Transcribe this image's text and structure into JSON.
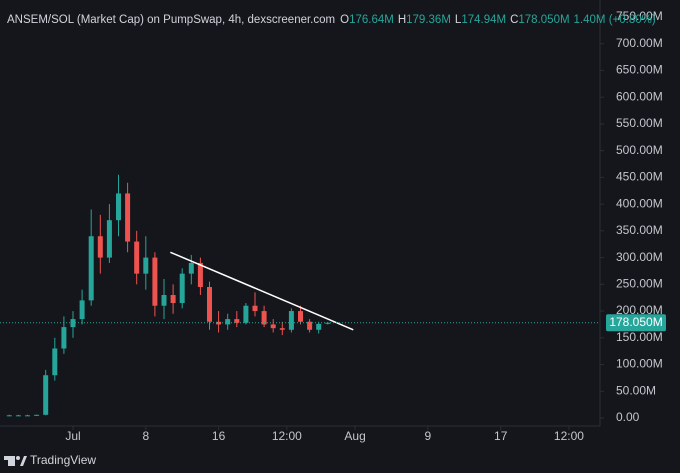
{
  "chart_data": {
    "type": "candlestick",
    "title": "ANSEM/SOL (Market Cap) on PumpSwap, 4h, dexscreener.com",
    "legend_ohlc": {
      "labels": [
        "O",
        "H",
        "L",
        "C"
      ],
      "values": [
        176.64,
        179.36,
        174.94,
        178.05
      ],
      "value_labels": [
        "176.64M",
        "179.36M",
        "174.94M",
        "178.050M"
      ]
    },
    "change": {
      "value": 1.4,
      "percent": 0.8,
      "label": "1.40M (+0.80%)"
    },
    "last_price": {
      "value": 178.05,
      "label": "178.050M"
    },
    "up_color": "#26a69a",
    "down_color": "#ef5350",
    "x": [
      -7,
      -6,
      -5,
      -4,
      -3,
      -2,
      -1,
      0,
      1,
      2,
      3,
      4,
      5,
      6,
      7,
      8,
      9,
      10,
      11,
      12,
      13,
      14,
      15,
      16,
      17,
      18,
      19,
      20,
      21,
      22,
      23,
      24,
      25,
      26,
      27,
      28
    ],
    "open": [
      5,
      5,
      5,
      5,
      6,
      80,
      130,
      170,
      185,
      220,
      340,
      300,
      370,
      420,
      330,
      270,
      300,
      210,
      230,
      215,
      270,
      290,
      245,
      180,
      175,
      185,
      178,
      210,
      200,
      175,
      168,
      165,
      200,
      180,
      165,
      176.64
    ],
    "high": [
      6,
      6,
      6,
      6,
      90,
      150,
      190,
      200,
      240,
      390,
      380,
      400,
      455,
      440,
      350,
      340,
      310,
      260,
      250,
      280,
      305,
      300,
      255,
      200,
      195,
      200,
      215,
      235,
      210,
      185,
      180,
      205,
      210,
      185,
      180,
      179.36
    ],
    "low": [
      4,
      4,
      4,
      4,
      5,
      70,
      120,
      150,
      175,
      210,
      270,
      290,
      340,
      310,
      250,
      240,
      190,
      185,
      195,
      205,
      250,
      230,
      165,
      160,
      165,
      170,
      175,
      190,
      170,
      160,
      155,
      160,
      175,
      160,
      158,
      174.94
    ],
    "close": [
      5,
      5,
      5,
      6,
      80,
      130,
      170,
      185,
      220,
      340,
      300,
      370,
      420,
      330,
      270,
      300,
      210,
      230,
      215,
      270,
      290,
      245,
      180,
      175,
      185,
      178,
      210,
      200,
      175,
      168,
      165,
      200,
      180,
      165,
      176,
      178.05
    ],
    "trendline": {
      "x": [
        10.7,
        30.8
      ],
      "y": [
        310,
        165
      ],
      "color": "#ffffff"
    },
    "xlim": [
      -8,
      58
    ],
    "xticks": [
      {
        "value": 0,
        "label": "Jul"
      },
      8,
      16,
      {
        "value": 23.5,
        "label": "12:00"
      },
      {
        "value": 31,
        "label": "Aug"
      },
      {
        "value": 39,
        "label": "9"
      },
      {
        "value": 47,
        "label": "17"
      },
      {
        "value": 54.5,
        "label": "12:00"
      }
    ],
    "ylim": [
      0,
      750
    ],
    "yticks": [
      {
        "value": 0,
        "label": "0.00"
      },
      {
        "value": 50,
        "label": "50.00M"
      },
      {
        "value": 100,
        "label": "100.00M"
      },
      {
        "value": 150,
        "label": "150.00M"
      },
      {
        "value": 200,
        "label": "200.00M"
      },
      {
        "value": 250,
        "label": "250.00M"
      },
      {
        "value": 300,
        "label": "300.00M"
      },
      {
        "value": 350,
        "label": "350.00M"
      },
      {
        "value": 400,
        "label": "400.00M"
      },
      {
        "value": 450,
        "label": "450.00M"
      },
      {
        "value": 500,
        "label": "500.00M"
      },
      {
        "value": 550,
        "label": "550.00M"
      },
      {
        "value": 600,
        "label": "600.00M"
      },
      {
        "value": 650,
        "label": "650.00M"
      },
      {
        "value": 700,
        "label": "700.00M"
      },
      {
        "value": 750,
        "label": "750.00M"
      }
    ],
    "brand": "TradingView"
  }
}
